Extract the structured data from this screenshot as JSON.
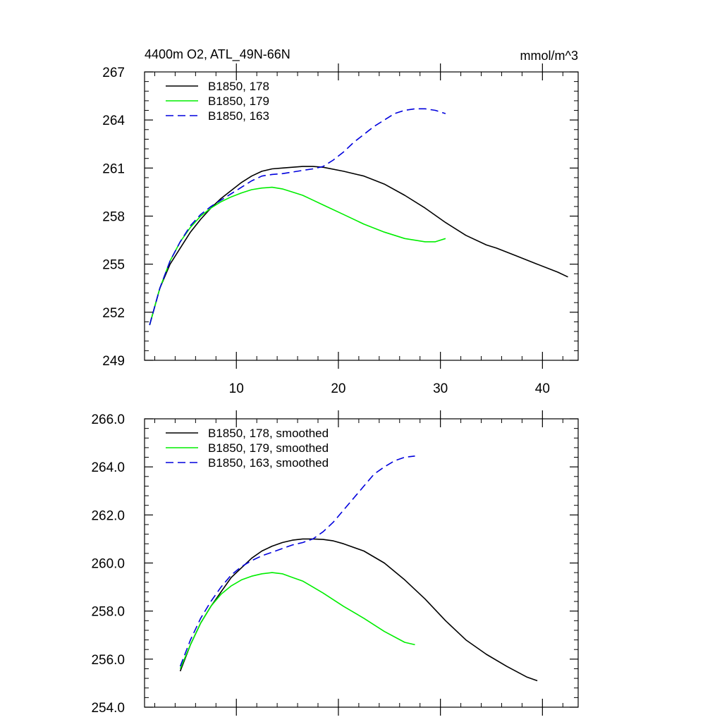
{
  "colors": {
    "black": "#000000",
    "green": "#00ee00",
    "blue": "#0000dd",
    "frame": "#000000"
  },
  "chart_data": [
    {
      "type": "line",
      "title": "4400m O2, ATL_49N-66N",
      "units": "mmol/m^3",
      "xlim": [
        1,
        43.5
      ],
      "ylim": [
        249,
        267
      ],
      "xticks": [
        10,
        20,
        30,
        40
      ],
      "xtick_labels": [
        "10",
        "20",
        "30",
        "40"
      ],
      "yticks": [
        249,
        252,
        255,
        258,
        261,
        264,
        267
      ],
      "ytick_labels": [
        "249",
        "252",
        "255",
        "258",
        "261",
        "264",
        "267"
      ],
      "x_minor": 2,
      "y_minor": 0.6,
      "show_x_labels": true,
      "legend_position": "top-left",
      "series": [
        {
          "name": "B1850, 178",
          "color": "#000000",
          "dash": "solid",
          "x": [
            1.5,
            2.5,
            3.5,
            4.5,
            5.5,
            6.5,
            7.5,
            8.5,
            9.5,
            10.5,
            11.5,
            12.5,
            13.5,
            14.5,
            15.5,
            16.5,
            17.5,
            18.5,
            20.5,
            22.5,
            24.5,
            26.5,
            28.5,
            30.5,
            32.5,
            34.5,
            35.5,
            37.5,
            39.5,
            41.5,
            42.5
          ],
          "y": [
            251.2,
            253.5,
            255.0,
            256.0,
            257.0,
            257.8,
            258.5,
            259.1,
            259.6,
            260.1,
            260.5,
            260.8,
            260.95,
            261.0,
            261.05,
            261.1,
            261.1,
            261.05,
            260.8,
            260.5,
            260.0,
            259.3,
            258.5,
            257.6,
            256.8,
            256.2,
            256.0,
            255.5,
            255.0,
            254.5,
            254.2
          ]
        },
        {
          "name": "B1850, 179",
          "color": "#00ee00",
          "dash": "solid",
          "x": [
            1.5,
            2.5,
            3.5,
            4.5,
            5.5,
            6.5,
            7.5,
            8.5,
            9.5,
            10.5,
            11.5,
            12.5,
            13.5,
            14.5,
            15.5,
            16.5,
            17.5,
            18.5,
            20.5,
            22.5,
            24.5,
            26.5,
            28.5,
            29.5,
            30.5
          ],
          "y": [
            251.2,
            253.5,
            255.2,
            256.4,
            257.3,
            258.0,
            258.5,
            258.9,
            259.2,
            259.45,
            259.65,
            259.75,
            259.8,
            259.7,
            259.5,
            259.3,
            259.0,
            258.7,
            258.1,
            257.5,
            257.0,
            256.6,
            256.4,
            256.4,
            256.6
          ]
        },
        {
          "name": "B1850, 163",
          "color": "#0000dd",
          "dash": "dashed",
          "x": [
            1.5,
            2.5,
            3.5,
            4.5,
            5.5,
            6.5,
            7.5,
            8.5,
            9.5,
            10.5,
            11.5,
            12.5,
            13.5,
            14.5,
            15.5,
            16.5,
            17.5,
            18.5,
            19.5,
            20.5,
            21.5,
            22.5,
            23.5,
            24.5,
            25.5,
            26.5,
            27.5,
            28.5,
            29.5,
            30.5
          ],
          "y": [
            251.2,
            253.5,
            255.2,
            256.4,
            257.4,
            258.1,
            258.6,
            259.0,
            259.4,
            259.8,
            260.2,
            260.5,
            260.6,
            260.65,
            260.75,
            260.85,
            260.95,
            261.1,
            261.5,
            262.0,
            262.6,
            263.1,
            263.6,
            264.0,
            264.4,
            264.6,
            264.7,
            264.7,
            264.6,
            264.4
          ]
        }
      ]
    },
    {
      "type": "line",
      "title": "",
      "units": "",
      "xlim": [
        1,
        43.5
      ],
      "ylim": [
        254,
        266
      ],
      "xticks": [
        10,
        20,
        30,
        40
      ],
      "xtick_labels": [],
      "yticks": [
        254,
        256,
        258,
        260,
        262,
        264,
        266
      ],
      "ytick_labels": [
        "254.0",
        "256.0",
        "258.0",
        "260.0",
        "262.0",
        "264.0",
        "266.0"
      ],
      "x_minor": 2,
      "y_minor": 0.4,
      "show_x_labels": false,
      "legend_position": "top-left",
      "series": [
        {
          "name": "B1850, 178, smoothed",
          "color": "#000000",
          "dash": "solid",
          "x": [
            4.5,
            5.5,
            6.5,
            7.5,
            8.5,
            9.5,
            10.5,
            11.5,
            12.5,
            13.5,
            14.5,
            15.5,
            16.5,
            17.5,
            18.5,
            19.5,
            20.5,
            22.5,
            24.5,
            26.5,
            28.5,
            30.5,
            32.5,
            34.5,
            36.5,
            38.5,
            39.5
          ],
          "y": [
            255.5,
            256.6,
            257.5,
            258.2,
            258.8,
            259.4,
            259.8,
            260.2,
            260.5,
            260.7,
            260.85,
            260.95,
            261.0,
            261.0,
            260.98,
            260.92,
            260.8,
            260.5,
            260.0,
            259.3,
            258.5,
            257.6,
            256.8,
            256.2,
            255.7,
            255.25,
            255.1
          ]
        },
        {
          "name": "B1850, 179, smoothed",
          "color": "#00ee00",
          "dash": "solid",
          "x": [
            4.5,
            5.5,
            6.5,
            7.5,
            8.5,
            9.5,
            10.5,
            11.5,
            12.5,
            13.5,
            14.5,
            15.5,
            16.5,
            17.5,
            18.5,
            20.5,
            22.5,
            24.5,
            26.5,
            27.5
          ],
          "y": [
            255.6,
            256.6,
            257.5,
            258.2,
            258.7,
            259.05,
            259.3,
            259.45,
            259.55,
            259.6,
            259.55,
            259.4,
            259.25,
            259.0,
            258.75,
            258.2,
            257.7,
            257.15,
            256.7,
            256.6
          ]
        },
        {
          "name": "B1850, 163, smoothed",
          "color": "#0000dd",
          "dash": "dashed",
          "x": [
            4.5,
            5.5,
            6.5,
            7.5,
            8.5,
            9.5,
            10.5,
            11.5,
            12.5,
            13.5,
            14.5,
            15.5,
            16.5,
            17.5,
            18.5,
            19.5,
            20.5,
            21.5,
            22.5,
            23.5,
            24.5,
            25.5,
            26.5,
            27.5
          ],
          "y": [
            255.7,
            256.8,
            257.7,
            258.4,
            259.0,
            259.5,
            259.85,
            260.1,
            260.3,
            260.45,
            260.6,
            260.75,
            260.85,
            261.0,
            261.3,
            261.7,
            262.2,
            262.7,
            263.2,
            263.7,
            264.0,
            264.25,
            264.4,
            264.45
          ]
        }
      ]
    }
  ]
}
